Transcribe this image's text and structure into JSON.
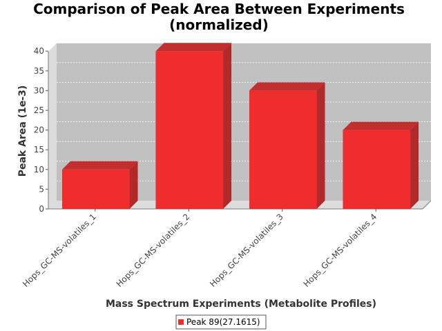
{
  "chart_data": {
    "type": "bar",
    "title_line1": "Comparison of Peak Area Between Experiments",
    "title_line2": "(normalized)",
    "xlabel": "Mass Spectrum Experiments (Metabolite Profiles)",
    "ylabel": "Peak Area (1e-3)",
    "categories": [
      "Hops_GC-MS-volatiles_1",
      "Hops_GC-MS-volatiles_2",
      "Hops_GC-MS-volatiles_3",
      "Hops_GC-MS-volatiles_4"
    ],
    "series": [
      {
        "name": "Peak 89(27.1615)",
        "values": [
          10,
          40,
          30,
          20
        ]
      }
    ],
    "ylim": [
      0,
      42
    ],
    "yticks": [
      0,
      5,
      10,
      15,
      20,
      25,
      30,
      35,
      40
    ],
    "grid": true,
    "legend_position": "bottom",
    "colors": {
      "bar_front": "#ef2d2d",
      "bar_top": "#c22f2f",
      "bar_side": "#b12a2a",
      "plot_back": "#c0c0c0",
      "plot_floor": "#dcdcdc",
      "grid": "#ffffff"
    }
  }
}
